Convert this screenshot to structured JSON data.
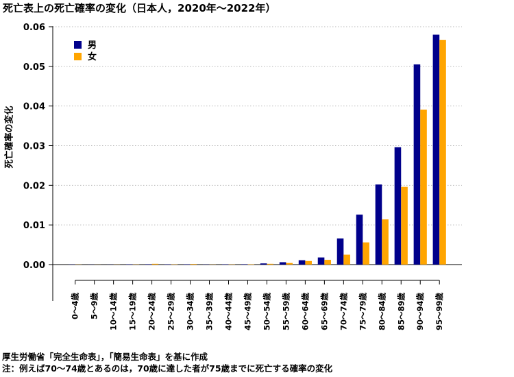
{
  "chart_data": {
    "type": "bar",
    "title": "死亡表上の死亡確率の変化（日本人，2020年～2022年）",
    "xlabel": "",
    "ylabel": "死亡確率の変化",
    "ylim": [
      -0.0045,
      0.061
    ],
    "yticks": [
      "0.00",
      "0.01",
      "0.02",
      "0.03",
      "0.04",
      "0.05",
      "0.06"
    ],
    "grid": "horizontal dotted",
    "legend_position": "top-left",
    "categories": [
      "0〜4歳",
      "5〜9歳",
      "10〜14歳",
      "15〜19歳",
      "20〜24歳",
      "25〜29歳",
      "30〜34歳",
      "35〜39歳",
      "40〜44歳",
      "45〜49歳",
      "50〜54歳",
      "55〜59歳",
      "60〜64歳",
      "65〜69歳",
      "70〜74歳",
      "75〜79歳",
      "80〜84歳",
      "85〜89歳",
      "90〜94歳",
      "95〜99歳"
    ],
    "series": [
      {
        "name": "男",
        "color": "#00008B",
        "values": [
          5e-05,
          3e-05,
          3e-05,
          8e-05,
          0.0001,
          8e-05,
          9e-05,
          5e-05,
          8e-05,
          0.0001,
          0.0003,
          0.0006,
          0.0011,
          0.0018,
          0.0066,
          0.0126,
          0.0202,
          0.0296,
          0.0505,
          0.058
        ]
      },
      {
        "name": "女",
        "color": "#FFA500",
        "values": [
          4e-05,
          2e-05,
          3e-05,
          5e-05,
          0.0002,
          7e-05,
          0.00015,
          4e-05,
          6e-05,
          9e-05,
          0.0002,
          0.0004,
          0.0009,
          0.0012,
          0.0025,
          0.0056,
          0.0114,
          0.0196,
          0.0391,
          0.0567
        ]
      }
    ]
  },
  "notes": {
    "source": "厚生労働省「完全生命表」，「簡易生命表」を基に作成",
    "note": "注：例えば70〜74歳とあるのは，70歳に達した者が75歳までに死亡する確率の変化"
  }
}
